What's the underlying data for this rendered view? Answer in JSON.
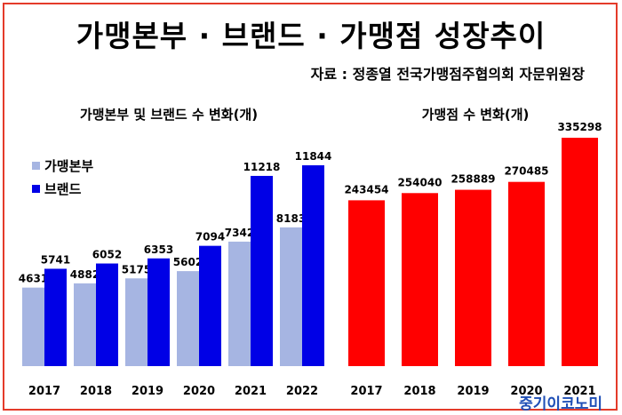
{
  "title": "가맹본부 · 브랜드 · 가맹점 성장추이",
  "source": "자료 : 정종열 전국가맹점주협의회 자문위원장",
  "logo": "중기이코노미",
  "colors": {
    "frame": "#e43b2a",
    "franchisor": "#a6b5e2",
    "brand": "#0000e6",
    "store": "#ff0000"
  },
  "chart_data": [
    {
      "type": "bar",
      "title": "가맹본부 및 브랜드 수 변화(개)",
      "categories": [
        "2017",
        "2018",
        "2019",
        "2020",
        "2021",
        "2022"
      ],
      "series": [
        {
          "name": "가맹본부",
          "values": [
            4631,
            4882,
            5175,
            5602,
            7342,
            8183
          ]
        },
        {
          "name": "브랜드",
          "values": [
            5741,
            6052,
            6353,
            7094,
            11218,
            11844
          ]
        }
      ],
      "legend": "top-left",
      "grid": false
    },
    {
      "type": "bar",
      "title": "가맹점 수 변화(개)",
      "categories": [
        "2017",
        "2018",
        "2019",
        "2020",
        "2021"
      ],
      "series": [
        {
          "values": [
            243454,
            254040,
            258889,
            270485,
            335298
          ]
        }
      ],
      "grid": false
    }
  ]
}
